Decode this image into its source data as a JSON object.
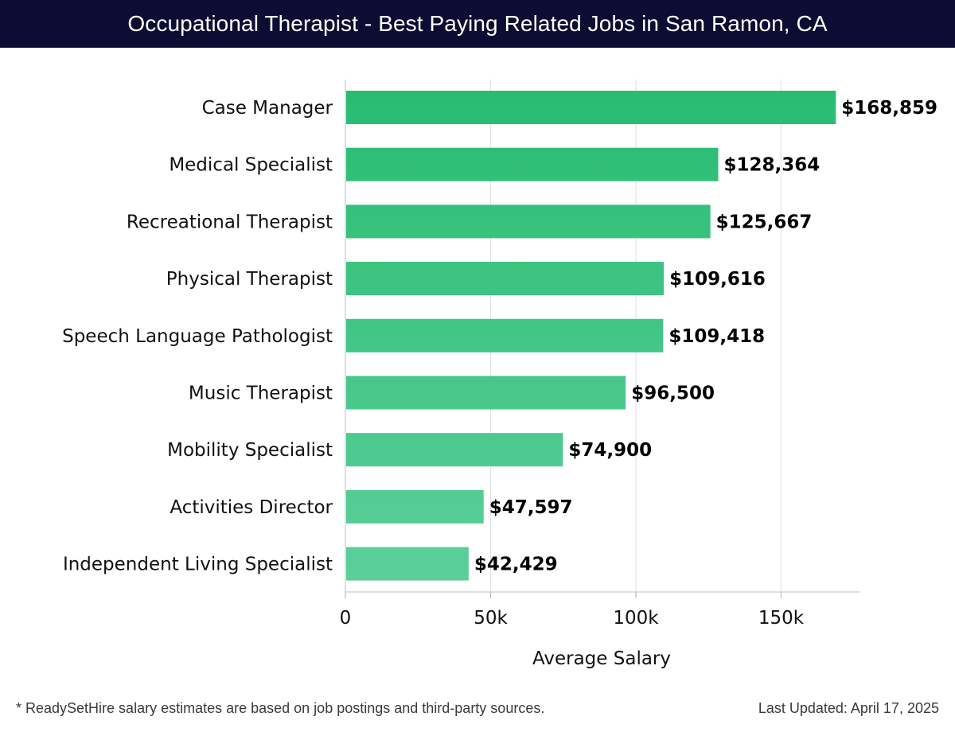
{
  "header": {
    "title": "Occupational Therapist - Best Paying Related Jobs in San Ramon, CA"
  },
  "chart_data": {
    "type": "bar",
    "orientation": "horizontal",
    "categories": [
      "Case Manager",
      "Medical Specialist",
      "Recreational Therapist",
      "Physical Therapist",
      "Speech Language Pathologist",
      "Music Therapist",
      "Mobility Specialist",
      "Activities Director",
      "Independent Living Specialist"
    ],
    "values": [
      168859,
      128364,
      125667,
      109616,
      109418,
      96500,
      74900,
      47597,
      42429
    ],
    "value_labels": [
      "$168,859",
      "$128,364",
      "$125,667",
      "$109,616",
      "$109,418",
      "$96,500",
      "$74,900",
      "$47,597",
      "$42,429"
    ],
    "xlabel": "Average Salary",
    "xlim": [
      0,
      177000
    ],
    "xticks": [
      0,
      50000,
      100000,
      150000
    ],
    "xtick_labels": [
      "0",
      "50k",
      "100k",
      "150k"
    ],
    "grid": true,
    "colors": {
      "bar_top": "#29bc72",
      "bar_bottom": "#5bcf9a",
      "header_bg": "#0d0d33"
    }
  },
  "footer": {
    "note": "* ReadySetHire salary estimates are based on job postings and third-party sources.",
    "updated": "Last Updated: April 17, 2025"
  }
}
